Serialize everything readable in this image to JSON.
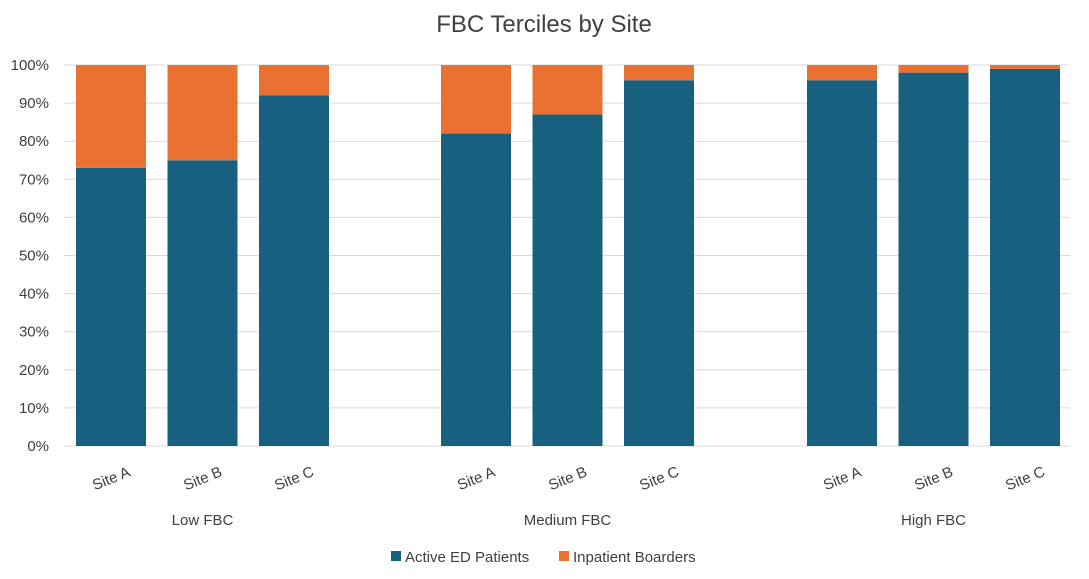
{
  "chart_data": {
    "type": "bar",
    "stacked": true,
    "title": "FBC Terciles by Site",
    "xlabel": "",
    "ylabel": "",
    "ylim": [
      0,
      100
    ],
    "y_ticks": [
      "0%",
      "10%",
      "20%",
      "30%",
      "40%",
      "50%",
      "60%",
      "70%",
      "80%",
      "90%",
      "100%"
    ],
    "groups": [
      {
        "label": "Low FBC",
        "categories": [
          "Site A",
          "Site B",
          "Site C"
        ]
      },
      {
        "label": "Medium FBC",
        "categories": [
          "Site A",
          "Site B",
          "Site C"
        ]
      },
      {
        "label": "High FBC",
        "categories": [
          "Site A",
          "Site B",
          "Site C"
        ]
      }
    ],
    "series": [
      {
        "name": "Active ED Patients",
        "color": "#17607f",
        "values": [
          73,
          75,
          92,
          82,
          87,
          96,
          96,
          98,
          99
        ]
      },
      {
        "name": "Inpatient Boarders",
        "color": "#e97132",
        "values": [
          27,
          25,
          8,
          18,
          13,
          4,
          4,
          2,
          1
        ]
      }
    ],
    "grid": true,
    "legend_position": "bottom"
  }
}
